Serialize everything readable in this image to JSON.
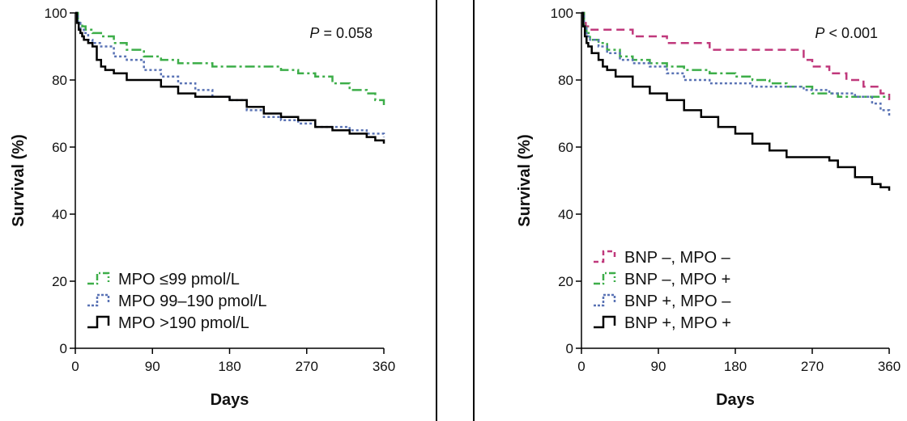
{
  "chart_data": [
    {
      "type": "line",
      "x_label": "Days",
      "y_label": "Survival (%)",
      "xlim": [
        0,
        360
      ],
      "ylim": [
        0,
        100
      ],
      "x_ticks": [
        0,
        90,
        180,
        270,
        360
      ],
      "y_ticks": [
        0,
        20,
        40,
        60,
        80,
        100
      ],
      "annotation": {
        "prefix": "P",
        "text": " = 0.058"
      },
      "legend_position": "bottom-left",
      "series": [
        {
          "name": "MPO ≤99 pmol/L",
          "color": "#3dae49",
          "style": "dashdot",
          "x": [
            0,
            3,
            5,
            8,
            12,
            20,
            30,
            45,
            60,
            80,
            100,
            120,
            140,
            160,
            180,
            200,
            220,
            240,
            250,
            260,
            280,
            300,
            320,
            340,
            350,
            360
          ],
          "y": [
            100,
            98,
            97,
            96,
            95,
            94,
            93,
            91,
            89,
            87,
            86,
            85,
            85,
            84,
            84,
            84,
            84,
            83,
            83,
            82,
            81,
            79,
            77,
            76,
            74,
            72
          ]
        },
        {
          "name": "MPO 99–190 pmol/L",
          "color": "#5a73b5",
          "style": "dotted",
          "x": [
            0,
            3,
            6,
            10,
            15,
            20,
            30,
            45,
            60,
            80,
            100,
            120,
            140,
            160,
            180,
            200,
            220,
            240,
            260,
            280,
            300,
            320,
            340,
            360
          ],
          "y": [
            100,
            97,
            95,
            94,
            92,
            91,
            90,
            87,
            86,
            83,
            81,
            79,
            77,
            75,
            74,
            71,
            69,
            68,
            67,
            66,
            66,
            65,
            64,
            63
          ]
        },
        {
          "name": "MPO >190 pmol/L",
          "color": "#000000",
          "style": "solid",
          "x": [
            0,
            2,
            4,
            6,
            8,
            10,
            15,
            20,
            25,
            30,
            35,
            45,
            60,
            80,
            100,
            120,
            140,
            160,
            180,
            200,
            220,
            240,
            260,
            280,
            300,
            320,
            340,
            350,
            360
          ],
          "y": [
            100,
            97,
            95,
            94,
            93,
            92,
            91,
            90,
            86,
            84,
            83,
            82,
            80,
            80,
            78,
            76,
            75,
            75,
            74,
            72,
            70,
            69,
            68,
            66,
            65,
            64,
            63,
            62,
            61
          ]
        }
      ]
    },
    {
      "type": "line",
      "x_label": "Days",
      "y_label": "Survival (%)",
      "xlim": [
        0,
        360
      ],
      "ylim": [
        0,
        100
      ],
      "x_ticks": [
        0,
        90,
        180,
        270,
        360
      ],
      "y_ticks": [
        0,
        20,
        40,
        60,
        80,
        100
      ],
      "annotation": {
        "prefix": "P",
        "text": " < 0.001"
      },
      "legend_position": "bottom-left",
      "series": [
        {
          "name": "BNP –,  MPO –",
          "color": "#c0397c",
          "style": "dashed",
          "x": [
            0,
            3,
            5,
            10,
            20,
            40,
            60,
            100,
            120,
            150,
            200,
            250,
            260,
            270,
            290,
            310,
            330,
            350,
            360
          ],
          "y": [
            100,
            97,
            96,
            95,
            95,
            95,
            93,
            91,
            91,
            89,
            89,
            89,
            86,
            84,
            82,
            80,
            78,
            76,
            74
          ]
        },
        {
          "name": "BNP –,  MPO +",
          "color": "#3dae49",
          "style": "dashdot",
          "x": [
            0,
            3,
            6,
            10,
            20,
            30,
            45,
            60,
            80,
            100,
            120,
            150,
            180,
            200,
            220,
            240,
            270,
            300,
            330,
            360
          ],
          "y": [
            100,
            96,
            94,
            92,
            91,
            89,
            87,
            86,
            85,
            84,
            83,
            82,
            81,
            80,
            79,
            78,
            76,
            75,
            75,
            75
          ]
        },
        {
          "name": "BNP +,  MPO –",
          "color": "#5a73b5",
          "style": "dotted",
          "x": [
            0,
            3,
            6,
            10,
            20,
            30,
            45,
            60,
            80,
            100,
            120,
            150,
            180,
            200,
            230,
            260,
            290,
            320,
            340,
            350,
            360
          ],
          "y": [
            100,
            96,
            93,
            92,
            90,
            88,
            86,
            85,
            84,
            82,
            80,
            79,
            79,
            78,
            78,
            77,
            76,
            75,
            73,
            71,
            69
          ]
        },
        {
          "name": "BNP +,  MPO +",
          "color": "#000000",
          "style": "solid",
          "x": [
            0,
            2,
            4,
            6,
            8,
            12,
            20,
            25,
            30,
            40,
            60,
            80,
            100,
            120,
            140,
            160,
            180,
            200,
            220,
            240,
            260,
            280,
            290,
            300,
            320,
            340,
            350,
            360
          ],
          "y": [
            100,
            96,
            93,
            91,
            90,
            88,
            86,
            84,
            83,
            81,
            78,
            76,
            74,
            71,
            69,
            66,
            64,
            61,
            59,
            57,
            57,
            57,
            56,
            54,
            51,
            49,
            48,
            47
          ]
        }
      ]
    }
  ]
}
